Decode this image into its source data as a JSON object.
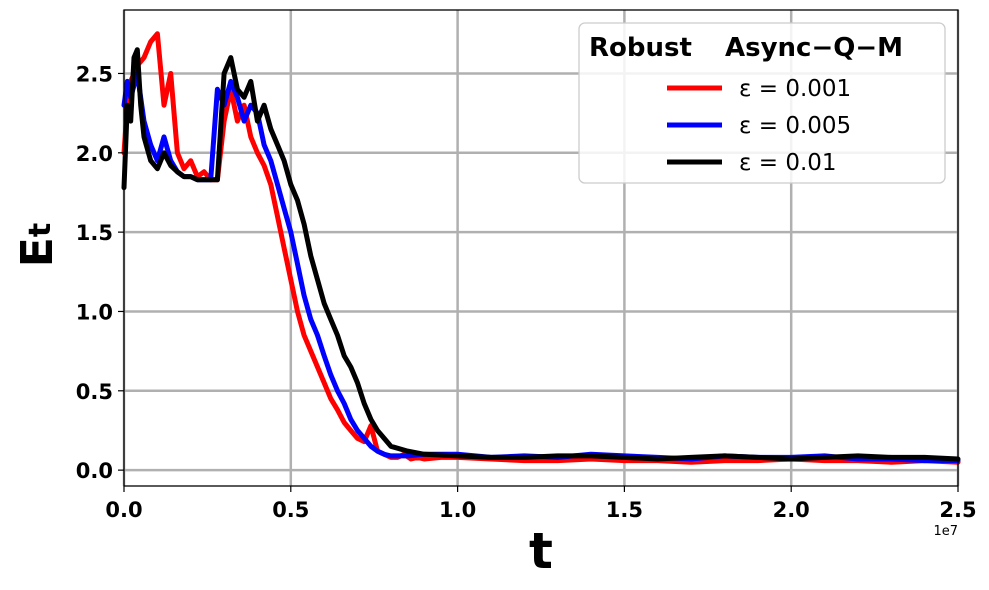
{
  "chart_data": {
    "type": "line",
    "xlabel": "t",
    "ylabel": "E",
    "ylabel_sub": "t",
    "x_offset_label": "1e7",
    "xlim": [
      0,
      2.5
    ],
    "ylim": [
      -0.1,
      2.9
    ],
    "xticks": [
      0.0,
      0.5,
      1.0,
      1.5,
      2.0,
      2.5
    ],
    "xtick_labels": [
      "0.0",
      "0.5",
      "1.0",
      "1.5",
      "2.0",
      "2.5"
    ],
    "yticks": [
      0.0,
      0.5,
      1.0,
      1.5,
      2.0,
      2.5
    ],
    "ytick_labels": [
      "0.0",
      "0.5",
      "1.0",
      "1.5",
      "2.0",
      "2.5"
    ],
    "grid": true,
    "legend": {
      "title_left": "Robust",
      "title_right": "Async−Q−M",
      "placement": "top-right"
    },
    "series": [
      {
        "name": "ε = 0.001",
        "color": "#ff0000",
        "x": [
          0.0,
          0.01,
          0.02,
          0.04,
          0.06,
          0.08,
          0.1,
          0.12,
          0.14,
          0.16,
          0.18,
          0.2,
          0.22,
          0.24,
          0.26,
          0.28,
          0.3,
          0.32,
          0.34,
          0.36,
          0.38,
          0.4,
          0.42,
          0.44,
          0.46,
          0.48,
          0.5,
          0.52,
          0.54,
          0.56,
          0.58,
          0.6,
          0.62,
          0.64,
          0.66,
          0.68,
          0.7,
          0.72,
          0.74,
          0.76,
          0.78,
          0.8,
          0.82,
          0.84,
          0.86,
          0.88,
          0.9,
          0.95,
          1.0,
          1.1,
          1.2,
          1.3,
          1.4,
          1.5,
          1.6,
          1.7,
          1.8,
          1.9,
          2.0,
          2.1,
          2.2,
          2.3,
          2.4,
          2.5
        ],
        "y": [
          2.0,
          2.3,
          2.45,
          2.55,
          2.6,
          2.7,
          2.75,
          2.3,
          2.5,
          2.0,
          1.9,
          1.95,
          1.85,
          1.88,
          1.83,
          1.83,
          2.2,
          2.4,
          2.2,
          2.3,
          2.1,
          2.0,
          1.92,
          1.8,
          1.6,
          1.4,
          1.2,
          1.0,
          0.85,
          0.75,
          0.65,
          0.55,
          0.45,
          0.38,
          0.3,
          0.25,
          0.2,
          0.18,
          0.28,
          0.12,
          0.1,
          0.08,
          0.08,
          0.1,
          0.07,
          0.08,
          0.07,
          0.08,
          0.08,
          0.07,
          0.06,
          0.06,
          0.07,
          0.06,
          0.06,
          0.05,
          0.06,
          0.06,
          0.07,
          0.06,
          0.06,
          0.05,
          0.06,
          0.05
        ]
      },
      {
        "name": "ε = 0.005",
        "color": "#0000ff",
        "x": [
          0.0,
          0.01,
          0.02,
          0.04,
          0.06,
          0.08,
          0.1,
          0.12,
          0.14,
          0.16,
          0.18,
          0.2,
          0.22,
          0.24,
          0.26,
          0.28,
          0.3,
          0.32,
          0.34,
          0.36,
          0.38,
          0.4,
          0.42,
          0.44,
          0.46,
          0.48,
          0.5,
          0.52,
          0.54,
          0.56,
          0.58,
          0.6,
          0.62,
          0.64,
          0.66,
          0.68,
          0.7,
          0.72,
          0.74,
          0.76,
          0.78,
          0.8,
          0.85,
          0.9,
          1.0,
          1.1,
          1.2,
          1.3,
          1.4,
          1.5,
          1.6,
          1.7,
          1.8,
          1.9,
          2.0,
          2.1,
          2.2,
          2.3,
          2.4,
          2.5
        ],
        "y": [
          2.3,
          2.45,
          2.35,
          2.5,
          2.2,
          2.05,
          1.95,
          2.1,
          1.95,
          1.88,
          1.85,
          1.85,
          1.83,
          1.83,
          1.83,
          2.4,
          2.3,
          2.45,
          2.35,
          2.2,
          2.3,
          2.25,
          2.05,
          1.95,
          1.8,
          1.65,
          1.5,
          1.3,
          1.1,
          0.95,
          0.85,
          0.72,
          0.6,
          0.5,
          0.42,
          0.32,
          0.25,
          0.2,
          0.15,
          0.12,
          0.1,
          0.09,
          0.09,
          0.1,
          0.1,
          0.08,
          0.09,
          0.08,
          0.1,
          0.09,
          0.08,
          0.07,
          0.09,
          0.08,
          0.08,
          0.09,
          0.07,
          0.07,
          0.06,
          0.06
        ]
      },
      {
        "name": "ε = 0.01",
        "color": "#000000",
        "x": [
          0.0,
          0.01,
          0.02,
          0.03,
          0.04,
          0.05,
          0.06,
          0.08,
          0.1,
          0.12,
          0.14,
          0.16,
          0.18,
          0.2,
          0.22,
          0.24,
          0.26,
          0.28,
          0.3,
          0.32,
          0.34,
          0.36,
          0.38,
          0.4,
          0.42,
          0.44,
          0.46,
          0.48,
          0.5,
          0.52,
          0.54,
          0.56,
          0.58,
          0.6,
          0.62,
          0.64,
          0.66,
          0.68,
          0.7,
          0.72,
          0.74,
          0.76,
          0.78,
          0.8,
          0.85,
          0.9,
          1.0,
          1.1,
          1.2,
          1.3,
          1.4,
          1.5,
          1.6,
          1.7,
          1.8,
          1.9,
          2.0,
          2.1,
          2.2,
          2.3,
          2.4,
          2.5
        ],
        "y": [
          1.78,
          2.3,
          2.2,
          2.6,
          2.65,
          2.3,
          2.1,
          1.95,
          1.9,
          2.0,
          1.92,
          1.88,
          1.85,
          1.85,
          1.83,
          1.83,
          1.83,
          1.83,
          2.5,
          2.6,
          2.4,
          2.35,
          2.45,
          2.2,
          2.3,
          2.15,
          2.05,
          1.95,
          1.8,
          1.7,
          1.55,
          1.35,
          1.2,
          1.05,
          0.95,
          0.85,
          0.72,
          0.65,
          0.55,
          0.42,
          0.32,
          0.25,
          0.2,
          0.15,
          0.12,
          0.1,
          0.09,
          0.08,
          0.08,
          0.09,
          0.09,
          0.08,
          0.07,
          0.08,
          0.09,
          0.08,
          0.07,
          0.08,
          0.09,
          0.08,
          0.08,
          0.07
        ]
      }
    ]
  }
}
